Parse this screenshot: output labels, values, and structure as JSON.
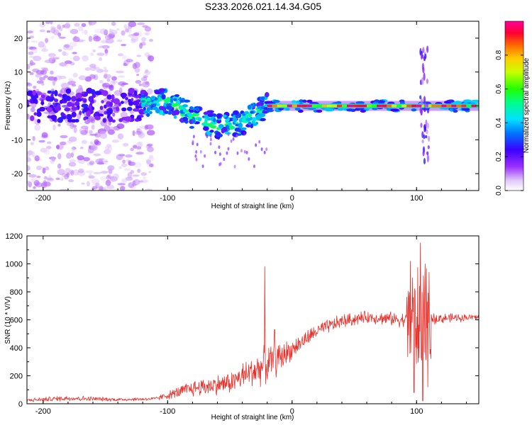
{
  "title": "S233.2026.021.14.34.G05",
  "chart_data": [
    {
      "type": "heatmap",
      "name": "spectrogram",
      "xlabel": "Height of straight line (km)",
      "ylabel": "Frequency (Hz)",
      "xlim": [
        -213,
        150
      ],
      "ylim": [
        -25,
        25
      ],
      "xticks": [
        -200,
        -100,
        0,
        100
      ],
      "xtick_labels": [
        "-200",
        "-100",
        "0",
        "100"
      ],
      "yticks": [
        -20,
        -10,
        0,
        10,
        20
      ],
      "ytick_labels": [
        "-20",
        "-10",
        "0",
        "10",
        "20"
      ],
      "colorbar": {
        "label": "Normalized spectral amplitude",
        "range": [
          0,
          1
        ],
        "ticks": [
          0.0,
          0.2,
          0.4,
          0.6,
          0.8
        ],
        "tick_labels": [
          "0.0",
          "0.2",
          "0.4",
          "0.6",
          "0.8"
        ],
        "colormap": "rainbow (white–purple–blue–cyan–green–yellow–red–magenta)"
      },
      "features": {
        "noise_region_km": [
          -213,
          -118
        ],
        "drift_track": [
          {
            "x": -120,
            "f": 0.5
          },
          {
            "x": -100,
            "f": 1.5
          },
          {
            "x": -80,
            "f": -3
          },
          {
            "x": -60,
            "f": -6
          },
          {
            "x": -40,
            "f": -5
          },
          {
            "x": -25,
            "f": -1
          },
          {
            "x": -20,
            "f": 0
          }
        ],
        "stable_line_km": [
          -20,
          150
        ],
        "stable_line_freq_hz": 0,
        "stable_line_amplitude": 0.95,
        "disturbance_km": [
          103,
          110
        ]
      }
    },
    {
      "type": "line",
      "name": "snr",
      "xlabel": "Height of straight line (km)",
      "ylabel": "SNR (10 * V/V)",
      "xlim": [
        -213,
        150
      ],
      "ylim": [
        0,
        1200
      ],
      "xticks": [
        -200,
        -100,
        0,
        100
      ],
      "xtick_labels": [
        "-200",
        "-100",
        "0",
        "100"
      ],
      "yticks": [
        0,
        200,
        400,
        600,
        800,
        1000,
        1200
      ],
      "ytick_labels": [
        "0",
        "200",
        "400",
        "600",
        "800",
        "1000",
        "1200"
      ],
      "color": "#e8302a",
      "envelope": [
        {
          "x": -213,
          "base": 25,
          "spread": 15
        },
        {
          "x": -180,
          "base": 40,
          "spread": 25
        },
        {
          "x": -140,
          "base": 30,
          "spread": 15
        },
        {
          "x": -110,
          "base": 35,
          "spread": 15
        },
        {
          "x": -80,
          "base": 110,
          "spread": 70
        },
        {
          "x": -50,
          "base": 150,
          "spread": 90
        },
        {
          "x": -30,
          "base": 240,
          "spread": 140
        },
        {
          "x": -15,
          "base": 300,
          "spread": 160
        },
        {
          "x": 0,
          "base": 390,
          "spread": 80
        },
        {
          "x": 20,
          "base": 520,
          "spread": 60
        },
        {
          "x": 40,
          "base": 590,
          "spread": 60
        },
        {
          "x": 60,
          "base": 620,
          "spread": 50
        },
        {
          "x": 90,
          "base": 600,
          "spread": 60
        },
        {
          "x": 150,
          "base": 620,
          "spread": 25
        }
      ],
      "spikes": [
        {
          "x": -22,
          "y": 980
        },
        {
          "x": -14,
          "y": 530
        },
        {
          "x": 95,
          "y": 1020
        },
        {
          "x": 103,
          "y": 1150
        },
        {
          "x": 107,
          "y": 1000
        },
        {
          "x": 110,
          "y": 940
        }
      ],
      "dips": [
        {
          "x": 98,
          "y": 80
        },
        {
          "x": 105,
          "y": 20
        },
        {
          "x": 109,
          "y": 120
        }
      ]
    }
  ]
}
